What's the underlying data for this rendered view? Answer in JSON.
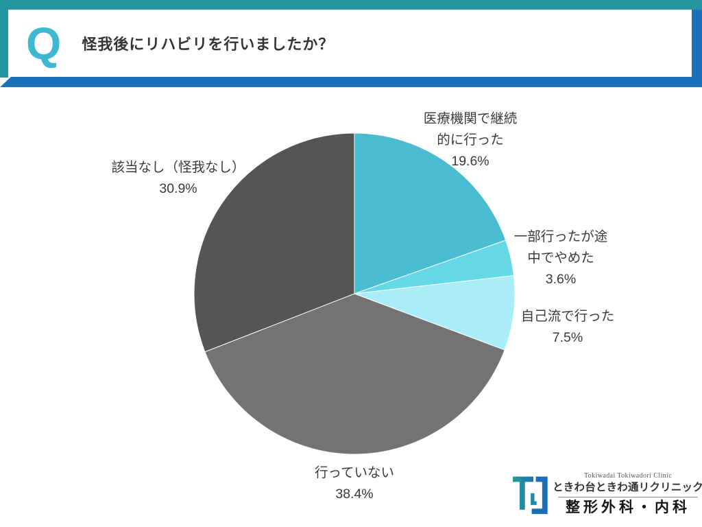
{
  "header": {
    "q_mark": "Q",
    "question": "怪我後にリハビリを行いましたか？"
  },
  "chart_data": {
    "type": "pie",
    "title": "怪我後にリハビリを行いましたか？",
    "start_angle": "top",
    "direction": "clockwise",
    "unit": "%",
    "slices": [
      {
        "label": "医療機関で継続的に行った",
        "value": 19.6,
        "color": "#49BCD2"
      },
      {
        "label": "一部行ったが途中でやめた",
        "value": 3.6,
        "color": "#66D9E9"
      },
      {
        "label": "自己流で行った",
        "value": 7.5,
        "color": "#A9EDF8"
      },
      {
        "label": "行っていない",
        "value": 38.4,
        "color": "#737373"
      },
      {
        "label": "該当なし（怪我なし）",
        "value": 30.9,
        "color": "#555555"
      }
    ]
  },
  "labels": {
    "medical": {
      "line1": "医療機関で継続",
      "line2": "的に行った",
      "pct": "19.6%"
    },
    "partial": {
      "line1": "一部行ったが途",
      "line2": "中でやめた",
      "pct": "3.6%"
    },
    "self": {
      "line1": "自己流で行った",
      "pct": "7.5%"
    },
    "none": {
      "line1": "行っていない",
      "pct": "38.4%"
    },
    "na": {
      "line1": "該当なし（怪我なし）",
      "pct": "30.9%"
    }
  },
  "logo": {
    "english": "Tokiwadai Tokiwadori Clinic",
    "clinic_name": "ときわ台ときわ通リクリニック",
    "departments": "整形外科・内科"
  },
  "colors": {
    "teal_frame": "#24949e",
    "blue_bar": "#1b72bb",
    "q_mark": "#3eb7d2",
    "label_text": "#3a3a3a",
    "logo_teal": "#25a08d",
    "logo_blue": "#1d6fba"
  }
}
